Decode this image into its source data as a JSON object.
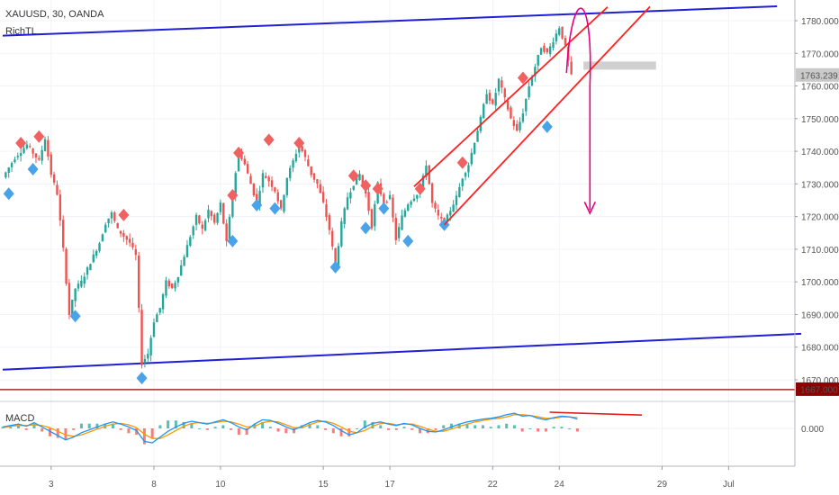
{
  "header": {
    "symbol_line": "XAUUSD, 30, OANDA",
    "indicator": "RichTL"
  },
  "macd_panel": {
    "label": "MACD"
  },
  "chart_data": {
    "type": "candlestick",
    "instrument": "XAUUSD",
    "timeframe": "30",
    "source": "OANDA",
    "price_axis": {
      "range": [
        1665,
        1785
      ],
      "ticks": [
        1670,
        1680,
        1690,
        1700,
        1710,
        1720,
        1730,
        1740,
        1750,
        1760,
        1770,
        1780
      ],
      "tick_labels": [
        "1670.000",
        "1680.000",
        "1690.000",
        "1700.000",
        "1710.000",
        "1720.000",
        "1730.000",
        "1740.000",
        "1750.000",
        "1760.000",
        "1770.000",
        "1780.000"
      ],
      "current_price_label": "1763.239",
      "current_price": 1763.239,
      "horizontal_level_label": "1667.000",
      "horizontal_level": 1667.0
    },
    "x_axis": {
      "tick_labels": [
        "3",
        "8",
        "10",
        "15",
        "17",
        "22",
        "24",
        "29",
        "Jul"
      ],
      "tick_index": [
        8,
        25,
        36,
        53,
        64,
        81,
        92,
        109,
        120
      ]
    },
    "macd_axis": {
      "tick_labels": [
        "0.000"
      ]
    },
    "price_path": [
      [
        0,
        1732
      ],
      [
        2,
        1738
      ],
      [
        4,
        1742
      ],
      [
        6,
        1737
      ],
      [
        7,
        1744
      ],
      [
        8,
        1733
      ],
      [
        9,
        1727
      ],
      [
        10,
        1710
      ],
      [
        11,
        1690
      ],
      [
        12,
        1698
      ],
      [
        13,
        1700
      ],
      [
        14,
        1704
      ],
      [
        16,
        1712
      ],
      [
        17,
        1718
      ],
      [
        18,
        1721
      ],
      [
        19,
        1716
      ],
      [
        21,
        1712
      ],
      [
        22,
        1708
      ],
      [
        23,
        1675
      ],
      [
        24,
        1678
      ],
      [
        25,
        1688
      ],
      [
        26,
        1692
      ],
      [
        27,
        1700
      ],
      [
        28,
        1698
      ],
      [
        29,
        1702
      ],
      [
        30,
        1708
      ],
      [
        31,
        1714
      ],
      [
        32,
        1720
      ],
      [
        33,
        1716
      ],
      [
        34,
        1722
      ],
      [
        35,
        1718
      ],
      [
        36,
        1724
      ],
      [
        37,
        1712
      ],
      [
        38,
        1727
      ],
      [
        39,
        1740
      ],
      [
        40,
        1736
      ],
      [
        41,
        1730
      ],
      [
        42,
        1724
      ],
      [
        43,
        1733
      ],
      [
        44,
        1731
      ],
      [
        45,
        1728
      ],
      [
        46,
        1722
      ],
      [
        47,
        1732
      ],
      [
        48,
        1737
      ],
      [
        49,
        1742
      ],
      [
        50,
        1738
      ],
      [
        51,
        1733
      ],
      [
        52,
        1730
      ],
      [
        53,
        1724
      ],
      [
        54,
        1716
      ],
      [
        55,
        1705
      ],
      [
        56,
        1718
      ],
      [
        57,
        1726
      ],
      [
        58,
        1730
      ],
      [
        59,
        1733
      ],
      [
        60,
        1727
      ],
      [
        61,
        1717
      ],
      [
        62,
        1730
      ],
      [
        63,
        1724
      ],
      [
        64,
        1726
      ],
      [
        65,
        1713
      ],
      [
        66,
        1720
      ],
      [
        67,
        1724
      ],
      [
        68,
        1726
      ],
      [
        69,
        1728
      ],
      [
        70,
        1736
      ],
      [
        71,
        1724
      ],
      [
        72,
        1720
      ],
      [
        73,
        1718
      ],
      [
        74,
        1722
      ],
      [
        75,
        1726
      ],
      [
        76,
        1732
      ],
      [
        77,
        1736
      ],
      [
        78,
        1743
      ],
      [
        79,
        1750
      ],
      [
        80,
        1758
      ],
      [
        81,
        1754
      ],
      [
        82,
        1762
      ],
      [
        83,
        1756
      ],
      [
        84,
        1750
      ],
      [
        85,
        1746
      ],
      [
        86,
        1752
      ],
      [
        87,
        1760
      ],
      [
        88,
        1766
      ],
      [
        89,
        1772
      ],
      [
        90,
        1770
      ],
      [
        91,
        1774
      ],
      [
        92,
        1778
      ],
      [
        93,
        1772
      ],
      [
        94,
        1763
      ]
    ],
    "swing_highs": [
      {
        "i": 3,
        "price": 1742.5
      },
      {
        "i": 6,
        "price": 1744.5
      },
      {
        "i": 20,
        "price": 1720.5
      },
      {
        "i": 38,
        "price": 1726.5
      },
      {
        "i": 39,
        "price": 1739.5
      },
      {
        "i": 44,
        "price": 1743.5
      },
      {
        "i": 49,
        "price": 1742.5
      },
      {
        "i": 58,
        "price": 1732.5
      },
      {
        "i": 60,
        "price": 1729.5
      },
      {
        "i": 62,
        "price": 1728.5
      },
      {
        "i": 69,
        "price": 1728.5
      },
      {
        "i": 76,
        "price": 1736.5
      },
      {
        "i": 86,
        "price": 1762.5
      }
    ],
    "swing_lows": [
      {
        "i": 1,
        "price": 1727
      },
      {
        "i": 5,
        "price": 1734.5
      },
      {
        "i": 12,
        "price": 1689.5
      },
      {
        "i": 23,
        "price": 1670.5
      },
      {
        "i": 38,
        "price": 1712.5
      },
      {
        "i": 42,
        "price": 1723.5
      },
      {
        "i": 45,
        "price": 1722.5
      },
      {
        "i": 55,
        "price": 1704.5
      },
      {
        "i": 60,
        "price": 1716.5
      },
      {
        "i": 63,
        "price": 1722.5
      },
      {
        "i": 67,
        "price": 1712.5
      },
      {
        "i": 73,
        "price": 1717.5
      },
      {
        "i": 90,
        "price": 1747.5
      }
    ],
    "drawings": {
      "blue_upper_trendline": [
        [
          0,
          1775.4
        ],
        [
          128,
          1784.4
        ]
      ],
      "blue_lower_trendline": [
        [
          0,
          1673.1
        ],
        [
          132,
          1684.1
        ]
      ],
      "red_channel_upper": [
        [
          68,
          1729.2
        ],
        [
          100,
          1784.2
        ]
      ],
      "red_channel_lower": [
        [
          73,
          1717.5
        ],
        [
          107,
          1784.3
        ]
      ],
      "grey_zone": {
        "start_i": 96,
        "end_i": 108,
        "top": 1767.5,
        "bottom": 1765.0
      },
      "red_level_line": 1667.0
    },
    "macd": {
      "macd_line": [
        0.2,
        0.4,
        0.6,
        0.3,
        0.8,
        0.2,
        -0.4,
        -1.0,
        -1.6,
        -1.2,
        -0.6,
        -0.2,
        0.2,
        0.6,
        0.9,
        0.6,
        0.2,
        -0.3,
        -1.8,
        -2.0,
        -1.2,
        -0.4,
        0.2,
        0.7,
        1.0,
        0.8,
        0.6,
        0.9,
        1.2,
        0.8,
        0.2,
        -0.2,
        0.6,
        1.2,
        1.1,
        0.7,
        0.2,
        -0.2,
        0.3,
        0.8,
        1.1,
        0.9,
        0.4,
        -0.3,
        -0.9,
        -0.6,
        0.2,
        0.7,
        0.9,
        0.6,
        0.4,
        0.7,
        0.5,
        0.0,
        -0.4,
        -0.5,
        -0.2,
        0.2,
        0.6,
        0.9,
        1.1,
        1.3,
        1.4,
        1.6,
        1.9,
        2.1,
        1.7,
        1.8,
        1.4,
        1.2,
        1.5,
        1.7,
        1.6,
        1.3
      ],
      "signal_line": [
        0.1,
        0.3,
        0.4,
        0.4,
        0.5,
        0.4,
        0.1,
        -0.4,
        -0.9,
        -1.1,
        -0.9,
        -0.5,
        -0.1,
        0.3,
        0.6,
        0.7,
        0.5,
        0.1,
        -0.8,
        -1.4,
        -1.4,
        -0.9,
        -0.3,
        0.3,
        0.7,
        0.8,
        0.7,
        0.8,
        1.0,
        0.9,
        0.6,
        0.2,
        0.3,
        0.8,
        1.0,
        0.9,
        0.5,
        0.1,
        0.1,
        0.5,
        0.9,
        1.0,
        0.7,
        0.2,
        -0.4,
        -0.6,
        -0.3,
        0.3,
        0.7,
        0.7,
        0.5,
        0.6,
        0.6,
        0.3,
        -0.1,
        -0.4,
        -0.4,
        -0.1,
        0.3,
        0.6,
        0.9,
        1.1,
        1.3,
        1.4,
        1.6,
        1.9,
        1.9,
        1.8,
        1.6,
        1.4,
        1.4,
        1.6,
        1.6,
        1.5
      ],
      "divergence_line": [
        [
          0.655,
          2.0
        ],
        [
          0.765,
          1.6
        ]
      ]
    }
  }
}
